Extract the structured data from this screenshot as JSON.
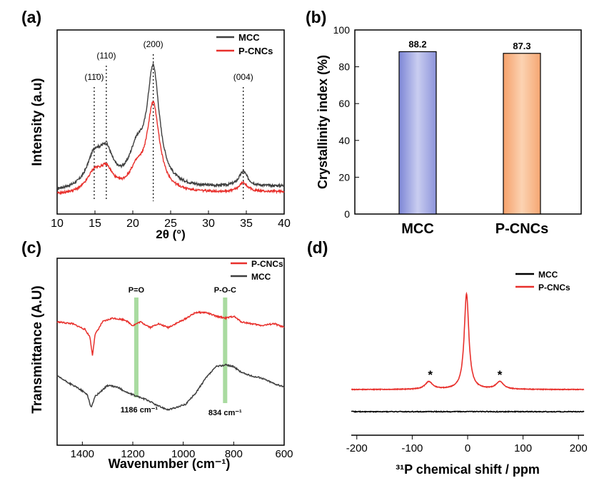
{
  "colors": {
    "mcc": "#3f3f3f",
    "pcnc": "#e8302c",
    "bar_mcc": "#8b93dc",
    "bar_pcnc": "#f7ac78",
    "band": "#a9dba0"
  },
  "chart_data": [
    {
      "panel": "(a)",
      "type": "line",
      "xlabel": "2θ (°)",
      "ylabel": "Intensity (a.u)",
      "xlim": [
        10,
        40
      ],
      "ylim": [
        0,
        1
      ],
      "xticks": [
        "10",
        "15",
        "20",
        "25",
        "30",
        "35",
        "40"
      ],
      "series": [
        {
          "name": "MCC",
          "peaks": [
            [
              14.9,
              0.16,
              1.2
            ],
            [
              16.5,
              0.17,
              1.1
            ],
            [
              20.5,
              0.17,
              1.2
            ],
            [
              22.7,
              0.63,
              1.0
            ],
            [
              34.6,
              0.08,
              0.7
            ]
          ],
          "baseline": [
            0.12,
            0.15
          ],
          "noise": 0.007
        },
        {
          "name": "P-CNCs",
          "peaks": [
            [
              14.9,
              0.1,
              1.2
            ],
            [
              16.5,
              0.11,
              1.1
            ],
            [
              20.5,
              0.1,
              1.2
            ],
            [
              22.7,
              0.47,
              1.0
            ],
            [
              34.6,
              0.05,
              0.7
            ]
          ],
          "baseline": [
            0.1,
            0.12
          ],
          "noise": 0.006
        }
      ],
      "annotations": [
        {
          "text": "(1$1̄$0)",
          "label": "(11̄0)",
          "x": 14.9
        },
        {
          "text": "(110)",
          "label": "(110)",
          "x": 16.5
        },
        {
          "text": "(200)",
          "label": "(200)",
          "x": 22.7
        },
        {
          "text": "(004)",
          "label": "(004)",
          "x": 34.6
        }
      ]
    },
    {
      "panel": "(b)",
      "type": "bar",
      "categories": [
        "MCC",
        "P-CNCs"
      ],
      "values": [
        88.2,
        87.3
      ],
      "value_labels": [
        "88.2",
        "87.3"
      ],
      "ylabel": "Crystallinity index (%)",
      "ylim": [
        0,
        100
      ],
      "yticks": [
        "0",
        "20",
        "40",
        "60",
        "80",
        "100"
      ]
    },
    {
      "panel": "(c)",
      "type": "line",
      "xlabel": "Wavenumber (cm⁻¹)",
      "ylabel": "Transmittance (A.U)",
      "xlim": [
        1500,
        600
      ],
      "xticks": [
        "1400",
        "1200",
        "1000",
        "800",
        "600"
      ],
      "series": [
        {
          "name": "P-CNCs",
          "points": [
            [
              1500,
              0.66
            ],
            [
              1440,
              0.65
            ],
            [
              1390,
              0.62
            ],
            [
              1370,
              0.58
            ],
            [
              1360,
              0.48
            ],
            [
              1350,
              0.59
            ],
            [
              1320,
              0.66
            ],
            [
              1280,
              0.68
            ],
            [
              1230,
              0.67
            ],
            [
              1200,
              0.64
            ],
            [
              1170,
              0.66
            ],
            [
              1130,
              0.63
            ],
            [
              1100,
              0.65
            ],
            [
              1060,
              0.63
            ],
            [
              1000,
              0.67
            ],
            [
              950,
              0.71
            ],
            [
              910,
              0.71
            ],
            [
              870,
              0.69
            ],
            [
              830,
              0.68
            ],
            [
              800,
              0.69
            ],
            [
              770,
              0.66
            ],
            [
              730,
              0.65
            ],
            [
              690,
              0.64
            ],
            [
              640,
              0.65
            ],
            [
              600,
              0.63
            ]
          ]
        },
        {
          "name": "MCC",
          "points": [
            [
              1500,
              0.37
            ],
            [
              1450,
              0.33
            ],
            [
              1410,
              0.3
            ],
            [
              1380,
              0.27
            ],
            [
              1365,
              0.2
            ],
            [
              1350,
              0.26
            ],
            [
              1300,
              0.32
            ],
            [
              1260,
              0.31
            ],
            [
              1220,
              0.28
            ],
            [
              1180,
              0.26
            ],
            [
              1140,
              0.24
            ],
            [
              1100,
              0.21
            ],
            [
              1060,
              0.19
            ],
            [
              1030,
              0.2
            ],
            [
              990,
              0.22
            ],
            [
              950,
              0.28
            ],
            [
              910,
              0.36
            ],
            [
              870,
              0.42
            ],
            [
              830,
              0.43
            ],
            [
              800,
              0.42
            ],
            [
              770,
              0.39
            ],
            [
              730,
              0.37
            ],
            [
              690,
              0.36
            ],
            [
              640,
              0.33
            ],
            [
              600,
              0.31
            ]
          ]
        }
      ],
      "bands": [
        {
          "label": "P=O",
          "x": 1186,
          "wn_label": "1186 cm⁻¹"
        },
        {
          "label": "P-O-C",
          "x": 834,
          "wn_label": "834 cm⁻¹"
        }
      ]
    },
    {
      "panel": "(d)",
      "type": "line",
      "xlabel": "³¹P chemical shift / ppm",
      "xlim": [
        -210,
        210
      ],
      "xticks": [
        "-200",
        "-100",
        "0",
        "100",
        "200"
      ],
      "series": [
        {
          "name": "MCC",
          "baseline": 0.0
        },
        {
          "name": "P-CNCs",
          "peaks": [
            [
              -2,
              1.0,
              5
            ],
            [
              -70,
              0.08,
              8
            ],
            [
              58,
              0.08,
              8
            ]
          ],
          "baseline": 0.0
        }
      ],
      "annotations": [
        {
          "text": "*",
          "x": -70
        },
        {
          "text": "*",
          "x": 58
        }
      ]
    }
  ],
  "legend_a": [
    "MCC",
    "P-CNCs"
  ],
  "legend_c": [
    "P-CNCs",
    "MCC"
  ],
  "legend_d": [
    "MCC",
    "P-CNCs"
  ],
  "panels": [
    "(a)",
    "(b)",
    "(c)",
    "(d)"
  ]
}
